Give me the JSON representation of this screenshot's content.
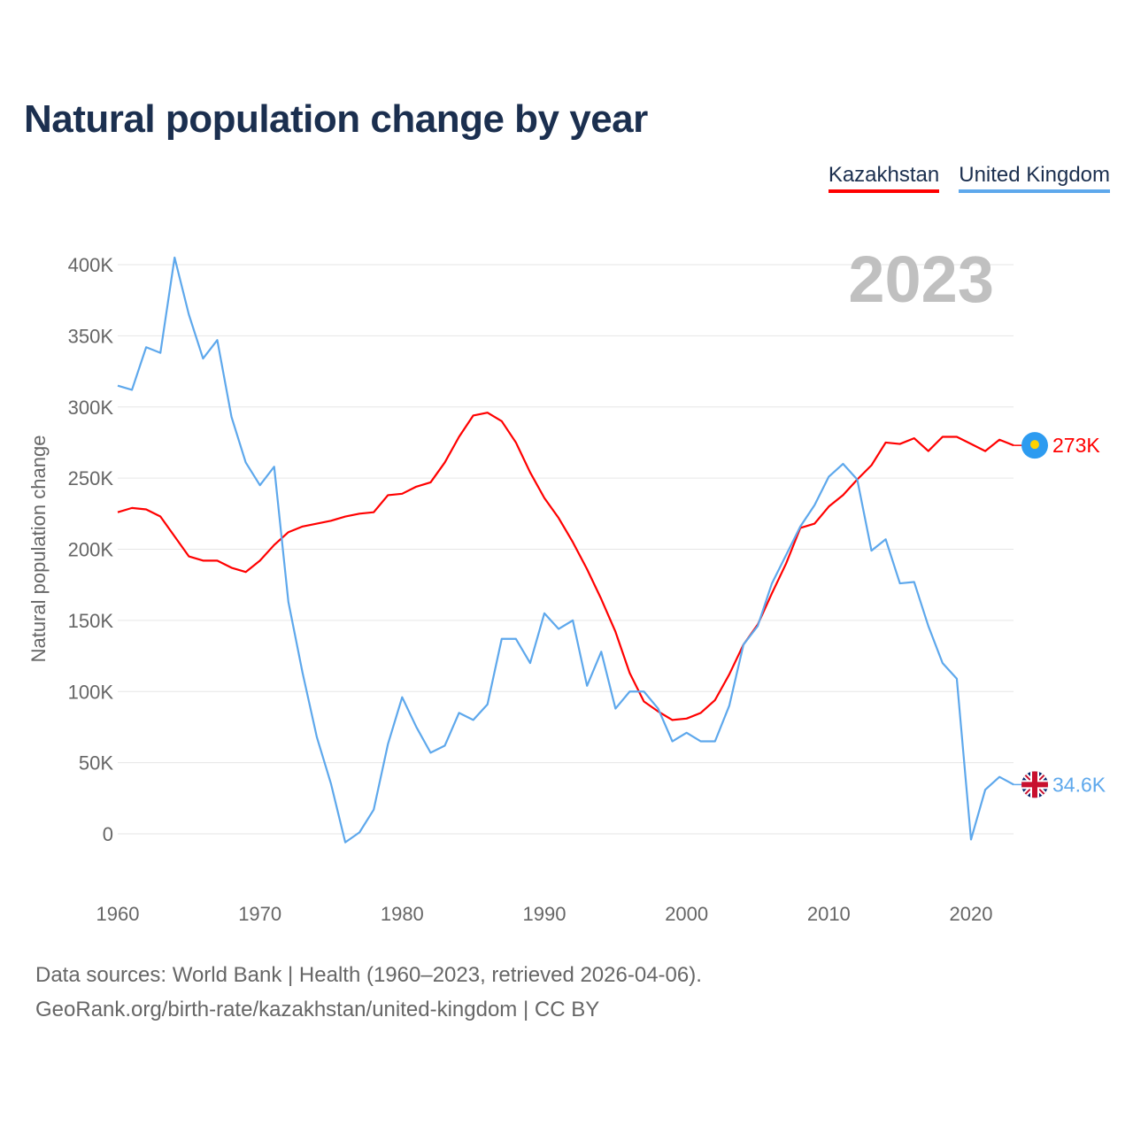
{
  "chart_data": {
    "type": "line",
    "title": "Natural population change by year",
    "ylabel": "Natural population change",
    "xlabel": "",
    "year_label": "2023",
    "xlim": [
      1960,
      2023
    ],
    "ylim": [
      -50000,
      420000
    ],
    "x_ticks": [
      1960,
      1970,
      1980,
      1990,
      2000,
      2010,
      2020
    ],
    "y_ticks": [
      0,
      50000,
      100000,
      150000,
      200000,
      250000,
      300000,
      350000,
      400000
    ],
    "y_tick_labels": [
      "0",
      "50K",
      "100K",
      "150K",
      "200K",
      "250K",
      "300K",
      "350K",
      "400K"
    ],
    "x_start": 1960,
    "grid": true,
    "legend_position": "top-right",
    "series": [
      {
        "name": "Kazakhstan",
        "color": "#ff0000",
        "end_label": "273K",
        "flag": "kazakhstan-flag",
        "values": [
          226,
          229,
          228,
          223,
          209,
          195,
          192,
          192,
          187,
          184,
          192,
          203,
          212,
          216,
          218,
          220,
          223,
          225,
          226,
          238,
          239,
          244,
          247,
          261,
          279,
          294,
          296,
          290,
          275,
          254,
          236,
          222,
          205,
          186,
          165,
          142,
          113,
          93,
          86,
          80,
          81,
          85,
          94,
          112,
          133,
          147,
          169,
          190,
          215,
          218,
          230,
          238,
          249,
          259,
          275,
          274,
          278,
          269,
          279,
          279,
          274,
          269,
          277,
          273
        ]
      },
      {
        "name": "United Kingdom",
        "color": "#5ea8ec",
        "end_label": "34.6K",
        "flag": "uk-flag",
        "values": [
          315,
          312,
          342,
          338,
          405,
          365,
          334,
          347,
          293,
          261,
          245,
          258,
          163,
          113,
          68,
          35,
          -6,
          1,
          17,
          63,
          96,
          75,
          57,
          62,
          85,
          80,
          91,
          137,
          137,
          120,
          155,
          144,
          150,
          104,
          128,
          88,
          100,
          100,
          88,
          65,
          71,
          65,
          65,
          90,
          133,
          146,
          176,
          196,
          216,
          231,
          251,
          260,
          249,
          199,
          207,
          176,
          177,
          146,
          120,
          109,
          -4,
          31,
          40,
          34.6
        ]
      }
    ],
    "value_unit": "thousands"
  },
  "footer": {
    "line1": "Data sources: World Bank | Health (1960–2023, retrieved 2026-04-06).",
    "line2": "GeoRank.org/birth-rate/kazakhstan/united-kingdom | CC BY"
  }
}
